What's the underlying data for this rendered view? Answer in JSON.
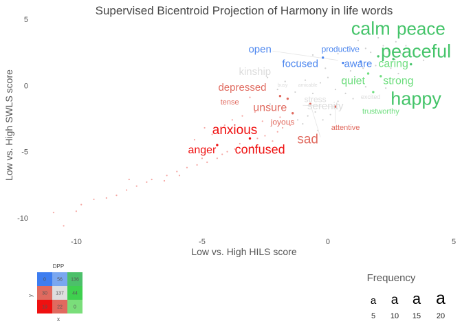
{
  "chart_data": {
    "type": "scatter",
    "title": "Supervised Bicentroid Projection of Harmony in life words",
    "xlabel": "Low vs. High HILS score",
    "ylabel": "Low vs. High SWLS score",
    "xlim": [
      -11.8,
      5
    ],
    "ylim": [
      -11.2,
      5
    ],
    "xticks": [
      -10,
      -5,
      0,
      5
    ],
    "yticks": [
      -10,
      -5,
      0,
      5
    ],
    "grid": false,
    "colors": {
      "blue": "#4d87ef",
      "light_blue": "#9ab8ee",
      "green": "#45c46a",
      "light_green": "#6fde7f",
      "red": "#ef1010",
      "salmon": "#e06a5f",
      "gray": "#dcdcdc",
      "light_red": "#f5a6a2",
      "light_gray": "#cfcfcf"
    },
    "labels": [
      {
        "text": "calm",
        "x": 1.7,
        "y": 4.2,
        "size": 20,
        "color": "green"
      },
      {
        "text": "peace",
        "x": 3.7,
        "y": 4.2,
        "size": 19,
        "color": "green"
      },
      {
        "text": "peaceful",
        "x": 3.5,
        "y": 2.5,
        "size": 20,
        "color": "green"
      },
      {
        "text": "happy",
        "x": 3.5,
        "y": -1.1,
        "size": 20,
        "color": "green"
      },
      {
        "text": "open",
        "x": -2.7,
        "y": 2.7,
        "size": 11,
        "color": "blue"
      },
      {
        "text": "productive",
        "x": 0.5,
        "y": 2.7,
        "size": 9,
        "color": "blue"
      },
      {
        "text": "focused",
        "x": -1.1,
        "y": 1.6,
        "size": 11,
        "color": "blue"
      },
      {
        "text": "aware",
        "x": 1.2,
        "y": 1.6,
        "size": 11,
        "color": "blue"
      },
      {
        "text": "caring",
        "x": 2.6,
        "y": 1.6,
        "size": 12,
        "color": "light_green"
      },
      {
        "text": "quiet",
        "x": 1.0,
        "y": 0.3,
        "size": 12,
        "color": "light_green"
      },
      {
        "text": "strong",
        "x": 2.8,
        "y": 0.3,
        "size": 12,
        "color": "light_green"
      },
      {
        "text": "trustworthy",
        "x": 2.1,
        "y": -2.0,
        "size": 8,
        "color": "light_green"
      },
      {
        "text": "kinship",
        "x": -2.9,
        "y": 1.0,
        "size": 11,
        "color": "gray"
      },
      {
        "text": "busy",
        "x": -1.8,
        "y": 0.0,
        "size": 5,
        "color": "gray"
      },
      {
        "text": "amicable",
        "x": -0.8,
        "y": 0.0,
        "size": 5,
        "color": "gray"
      },
      {
        "text": "stress",
        "x": -0.5,
        "y": -1.1,
        "size": 9,
        "color": "gray"
      },
      {
        "text": "serenity",
        "x": -0.1,
        "y": -1.6,
        "size": 11,
        "color": "gray"
      },
      {
        "text": "excited",
        "x": 1.7,
        "y": -0.9,
        "size": 7,
        "color": "gray"
      },
      {
        "text": "depressed",
        "x": -3.4,
        "y": -0.2,
        "size": 11,
        "color": "salmon"
      },
      {
        "text": "tense",
        "x": -3.9,
        "y": -1.3,
        "size": 8,
        "color": "salmon"
      },
      {
        "text": "unsure",
        "x": -2.3,
        "y": -1.7,
        "size": 12,
        "color": "salmon"
      },
      {
        "text": "joyous",
        "x": -1.8,
        "y": -2.8,
        "size": 9,
        "color": "salmon"
      },
      {
        "text": "attentive",
        "x": 0.7,
        "y": -3.2,
        "size": 8,
        "color": "salmon"
      },
      {
        "text": "sad",
        "x": -0.8,
        "y": -4.1,
        "size": 14,
        "color": "salmon"
      },
      {
        "text": "anxious",
        "x": -3.7,
        "y": -3.4,
        "size": 14,
        "color": "red"
      },
      {
        "text": "confused",
        "x": -2.7,
        "y": -4.9,
        "size": 13,
        "color": "red"
      },
      {
        "text": "anger",
        "x": -5.0,
        "y": -4.9,
        "size": 12,
        "color": "red"
      }
    ],
    "labeled_points": [
      {
        "x": -0.2,
        "y": 2.1,
        "color": "blue"
      },
      {
        "x": 0.6,
        "y": 1.7,
        "color": "blue"
      },
      {
        "x": 1.3,
        "y": 1.8,
        "color": "blue"
      },
      {
        "x": 2.6,
        "y": 2.0,
        "color": "green"
      },
      {
        "x": 3.3,
        "y": 1.6,
        "color": "green"
      },
      {
        "x": 2.0,
        "y": 2.2,
        "color": "green"
      },
      {
        "x": 1.6,
        "y": 0.9,
        "color": "light_green"
      },
      {
        "x": 1.8,
        "y": -0.5,
        "color": "light_green"
      },
      {
        "x": 2.1,
        "y": 0.7,
        "color": "light_green"
      },
      {
        "x": -4.4,
        "y": -4.5,
        "color": "red"
      },
      {
        "x": -3.1,
        "y": -4.0,
        "color": "red"
      },
      {
        "x": -1.6,
        "y": -1.0,
        "color": "salmon"
      },
      {
        "x": -1.9,
        "y": -0.8,
        "color": "salmon"
      },
      {
        "x": -0.7,
        "y": -1.4,
        "color": "salmon"
      },
      {
        "x": 0.3,
        "y": -1.6,
        "color": "salmon"
      },
      {
        "x": -1.4,
        "y": -2.1,
        "color": "salmon"
      }
    ],
    "background_points": [
      {
        "x": -10.5,
        "y": -10.6
      },
      {
        "x": -10.9,
        "y": -9.6
      },
      {
        "x": -10.0,
        "y": -9.5
      },
      {
        "x": -9.8,
        "y": -9.0
      },
      {
        "x": -9.3,
        "y": -8.6
      },
      {
        "x": -8.8,
        "y": -8.5
      },
      {
        "x": -8.4,
        "y": -8.3
      },
      {
        "x": -8.0,
        "y": -7.9
      },
      {
        "x": -7.6,
        "y": -7.6
      },
      {
        "x": -7.9,
        "y": -7.1
      },
      {
        "x": -7.2,
        "y": -7.3
      },
      {
        "x": -7.0,
        "y": -7.1
      },
      {
        "x": -6.5,
        "y": -7.2
      },
      {
        "x": -6.4,
        "y": -6.8
      },
      {
        "x": -6.0,
        "y": -6.5
      },
      {
        "x": -5.9,
        "y": -6.8
      },
      {
        "x": -5.6,
        "y": -6.2
      },
      {
        "x": -5.2,
        "y": -6.0
      },
      {
        "x": -5.0,
        "y": -5.5
      },
      {
        "x": -4.8,
        "y": -5.8
      },
      {
        "x": -4.4,
        "y": -5.5
      },
      {
        "x": -4.2,
        "y": -5.2
      },
      {
        "x": -4.0,
        "y": -5.0
      },
      {
        "x": -3.7,
        "y": -4.8
      },
      {
        "x": -3.5,
        "y": -4.4
      },
      {
        "x": -3.3,
        "y": -5.1
      },
      {
        "x": -3.0,
        "y": -4.6
      },
      {
        "x": -2.8,
        "y": -4.0
      },
      {
        "x": -2.5,
        "y": -3.8
      },
      {
        "x": -2.2,
        "y": -4.2
      },
      {
        "x": -2.0,
        "y": -3.5
      },
      {
        "x": -1.8,
        "y": -3.2
      },
      {
        "x": -1.5,
        "y": -3.0
      },
      {
        "x": -1.2,
        "y": -2.6
      },
      {
        "x": -1.0,
        "y": -2.9
      },
      {
        "x": -0.8,
        "y": -2.3
      },
      {
        "x": -0.5,
        "y": -2.0
      },
      {
        "x": -0.2,
        "y": -2.6
      },
      {
        "x": 0.1,
        "y": -2.2
      },
      {
        "x": -5.3,
        "y": -4.1
      },
      {
        "x": -4.6,
        "y": -3.7
      },
      {
        "x": -4.9,
        "y": -3.2
      },
      {
        "x": -4.1,
        "y": -3.0
      },
      {
        "x": -3.8,
        "y": -2.6
      },
      {
        "x": -3.4,
        "y": -2.3
      },
      {
        "x": -2.9,
        "y": -2.0
      },
      {
        "x": -2.6,
        "y": -2.7
      },
      {
        "x": -2.3,
        "y": -1.4
      },
      {
        "x": -2.0,
        "y": -0.3
      },
      {
        "x": -1.7,
        "y": 0.3
      },
      {
        "x": -1.3,
        "y": -0.5
      },
      {
        "x": -0.9,
        "y": 0.4
      },
      {
        "x": -0.6,
        "y": -0.6
      },
      {
        "x": -0.3,
        "y": 0.2
      },
      {
        "x": 0.0,
        "y": 0.6
      },
      {
        "x": 0.3,
        "y": -0.3
      },
      {
        "x": 0.6,
        "y": 0.4
      },
      {
        "x": 0.9,
        "y": 1.1
      },
      {
        "x": 1.1,
        "y": 0.5
      },
      {
        "x": 1.4,
        "y": 1.3
      },
      {
        "x": 1.7,
        "y": 2.5
      },
      {
        "x": 1.9,
        "y": 1.5
      },
      {
        "x": 2.2,
        "y": 3.0
      },
      {
        "x": 2.4,
        "y": 2.6
      },
      {
        "x": 2.7,
        "y": 3.3
      },
      {
        "x": 2.9,
        "y": 2.4
      },
      {
        "x": 3.1,
        "y": 3.0
      },
      {
        "x": 3.4,
        "y": 2.2
      },
      {
        "x": 3.6,
        "y": 2.8
      },
      {
        "x": 3.8,
        "y": 1.9
      },
      {
        "x": 0.4,
        "y": 2.4
      },
      {
        "x": 0.8,
        "y": 2.9
      },
      {
        "x": 1.2,
        "y": 3.4
      },
      {
        "x": 1.5,
        "y": 2.8
      },
      {
        "x": 2.0,
        "y": 3.6
      },
      {
        "x": 2.5,
        "y": 1.3
      },
      {
        "x": 2.8,
        "y": 0.9
      },
      {
        "x": 3.0,
        "y": 1.5
      },
      {
        "x": 2.3,
        "y": -0.2
      },
      {
        "x": 1.5,
        "y": -0.1
      },
      {
        "x": 1.0,
        "y": -1.0
      },
      {
        "x": 0.7,
        "y": -0.6
      },
      {
        "x": -1.2,
        "y": 1.8
      },
      {
        "x": -0.6,
        "y": 2.3
      },
      {
        "x": -0.1,
        "y": 1.3
      },
      {
        "x": -2.4,
        "y": 0.6
      },
      {
        "x": -3.1,
        "y": -0.9
      },
      {
        "x": -1.9,
        "y": -2.4
      },
      {
        "x": -0.4,
        "y": -3.4
      },
      {
        "x": 0.4,
        "y": -1.2
      }
    ],
    "inset": {
      "title": "DPP",
      "xlabel": "x",
      "ylabel": "y",
      "grid": [
        [
          {
            "value": "0",
            "color": "#3d7df0"
          },
          {
            "value": "56",
            "color": "#7aa7f0"
          },
          {
            "value": "136",
            "color": "#4cc06a"
          }
        ],
        [
          {
            "value": "30",
            "color": "#e06a5f"
          },
          {
            "value": "137",
            "color": "#dedede"
          },
          {
            "value": "44",
            "color": "#3fd04f"
          }
        ],
        [
          {
            "value": "19",
            "color": "#ef1010"
          },
          {
            "value": "22",
            "color": "#e06a5f"
          },
          {
            "value": "0",
            "color": "#7ade7a"
          }
        ]
      ]
    },
    "size_legend": {
      "title": "Frequency",
      "glyph": "a",
      "entries": [
        {
          "label": "5",
          "size": 15
        },
        {
          "label": "10",
          "size": 19
        },
        {
          "label": "15",
          "size": 22
        },
        {
          "label": "20",
          "size": 25
        }
      ]
    }
  }
}
